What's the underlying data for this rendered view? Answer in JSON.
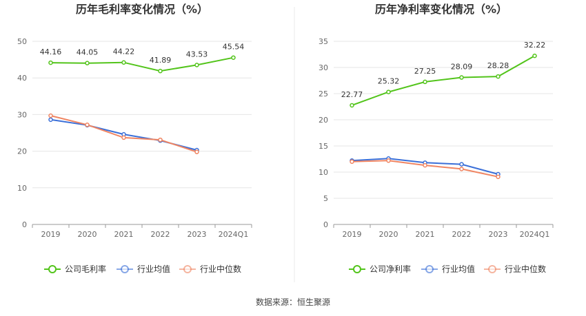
{
  "source_text": "数据来源：恒生聚源",
  "colors": {
    "company": "#52c41a",
    "industry_avg": "#3a6fd8",
    "industry_median": "#f08562",
    "grid": "#e6e6e6",
    "axis": "#999999",
    "divider": "#e8e8e8"
  },
  "chart_data": [
    {
      "type": "line",
      "title": "历年毛利率变化情况（%）",
      "categories": [
        "2019",
        "2020",
        "2021",
        "2022",
        "2023",
        "2024Q1"
      ],
      "ylim": [
        0,
        50
      ],
      "yticks": [
        0,
        10,
        20,
        30,
        40,
        50
      ],
      "grid": true,
      "legend_position": "bottom",
      "series": [
        {
          "name": "公司毛利率",
          "color_key": "company",
          "values": [
            44.16,
            44.05,
            44.22,
            41.89,
            43.53,
            45.54
          ],
          "labels": [
            "44.16",
            "44.05",
            "44.22",
            "41.89",
            "43.53",
            "45.54"
          ]
        },
        {
          "name": "行业均值",
          "color_key": "industry_avg",
          "values": [
            28.6,
            27.1,
            24.6,
            22.9,
            20.3,
            null
          ]
        },
        {
          "name": "行业中位数",
          "color_key": "industry_median",
          "values": [
            29.7,
            27.2,
            23.7,
            23.1,
            19.8,
            null
          ]
        }
      ]
    },
    {
      "type": "line",
      "title": "历年净利率变化情况（%）",
      "categories": [
        "2019",
        "2020",
        "2021",
        "2022",
        "2023",
        "2024Q1"
      ],
      "ylim": [
        0,
        35
      ],
      "yticks": [
        0,
        5,
        10,
        15,
        20,
        25,
        30,
        35
      ],
      "grid": true,
      "legend_position": "bottom",
      "series": [
        {
          "name": "公司净利率",
          "color_key": "company",
          "values": [
            22.77,
            25.32,
            27.25,
            28.09,
            28.28,
            32.22
          ],
          "labels": [
            "22.77",
            "25.32",
            "27.25",
            "28.09",
            "28.28",
            "32.22"
          ]
        },
        {
          "name": "行业均值",
          "color_key": "industry_avg",
          "values": [
            12.2,
            12.6,
            11.8,
            11.5,
            9.6,
            null
          ]
        },
        {
          "name": "行业中位数",
          "color_key": "industry_median",
          "values": [
            12.0,
            12.2,
            11.3,
            10.6,
            9.1,
            null
          ]
        }
      ]
    }
  ]
}
